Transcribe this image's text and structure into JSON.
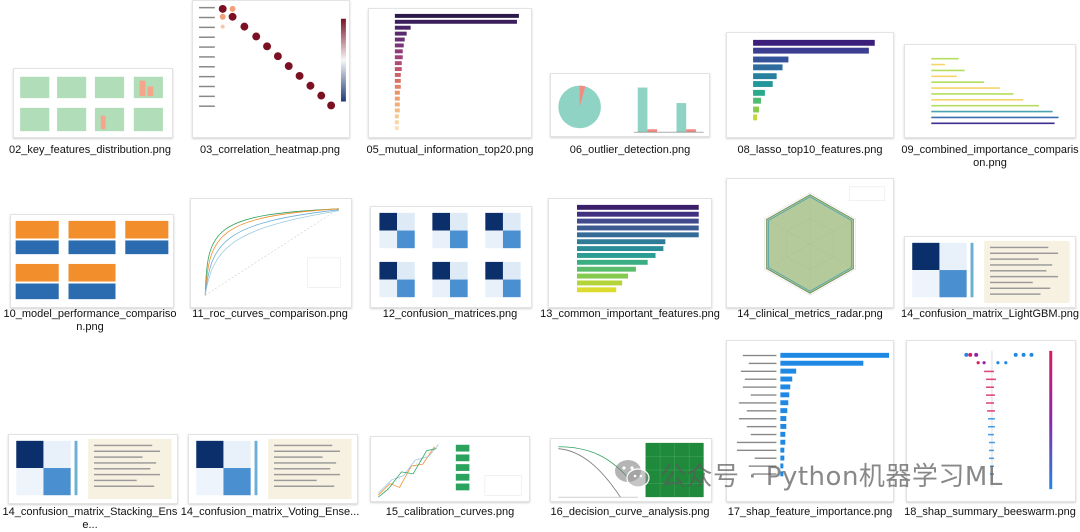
{
  "files": [
    {
      "name": "02_key_features_distribution.png",
      "icon": "histogram-grid-thumbnail"
    },
    {
      "name": "03_correlation_heatmap.png",
      "icon": "correlation-heatmap-thumbnail"
    },
    {
      "name": "05_mutual_information_top20.png",
      "icon": "bar-chart-thumbnail"
    },
    {
      "name": "06_outlier_detection.png",
      "icon": "pie-bar-thumbnail"
    },
    {
      "name": "08_lasso_top10_features.png",
      "icon": "bar-chart-thumbnail"
    },
    {
      "name": "09_combined_importance_comparison.png",
      "icon": "grouped-bar-thumbnail"
    },
    {
      "name": "10_model_performance_comparison.png",
      "icon": "bar-grid-thumbnail"
    },
    {
      "name": "11_roc_curves_comparison.png",
      "icon": "roc-curve-thumbnail"
    },
    {
      "name": "12_confusion_matrices.png",
      "icon": "confusion-grid-thumbnail"
    },
    {
      "name": "13_common_important_features.png",
      "icon": "bar-chart-thumbnail"
    },
    {
      "name": "14_clinical_metrics_radar.png",
      "icon": "radar-chart-thumbnail"
    },
    {
      "name": "14_confusion_matrix_LightGBM.png",
      "icon": "confusion-report-thumbnail"
    },
    {
      "name": "14_confusion_matrix_Stacking_Ense...",
      "icon": "confusion-report-thumbnail"
    },
    {
      "name": "14_confusion_matrix_Voting_Ense...",
      "icon": "confusion-report-thumbnail"
    },
    {
      "name": "15_calibration_curves.png",
      "icon": "calibration-curve-thumbnail"
    },
    {
      "name": "16_decision_curve_analysis.png",
      "icon": "decision-curve-thumbnail"
    },
    {
      "name": "17_shap_feature_importance.png",
      "icon": "shap-bar-thumbnail"
    },
    {
      "name": "18_shap_summary_beeswarm.png",
      "icon": "beeswarm-thumbnail"
    }
  ],
  "watermark": {
    "text": "公众号 · Python机器学习ML",
    "icon": "wechat-icon"
  },
  "colors": {
    "orange": "#f28e2b",
    "navy": "#1f3b73",
    "teal": "#8fd3c4",
    "purple": "#3b1f5c",
    "green": "#2ca25f"
  }
}
